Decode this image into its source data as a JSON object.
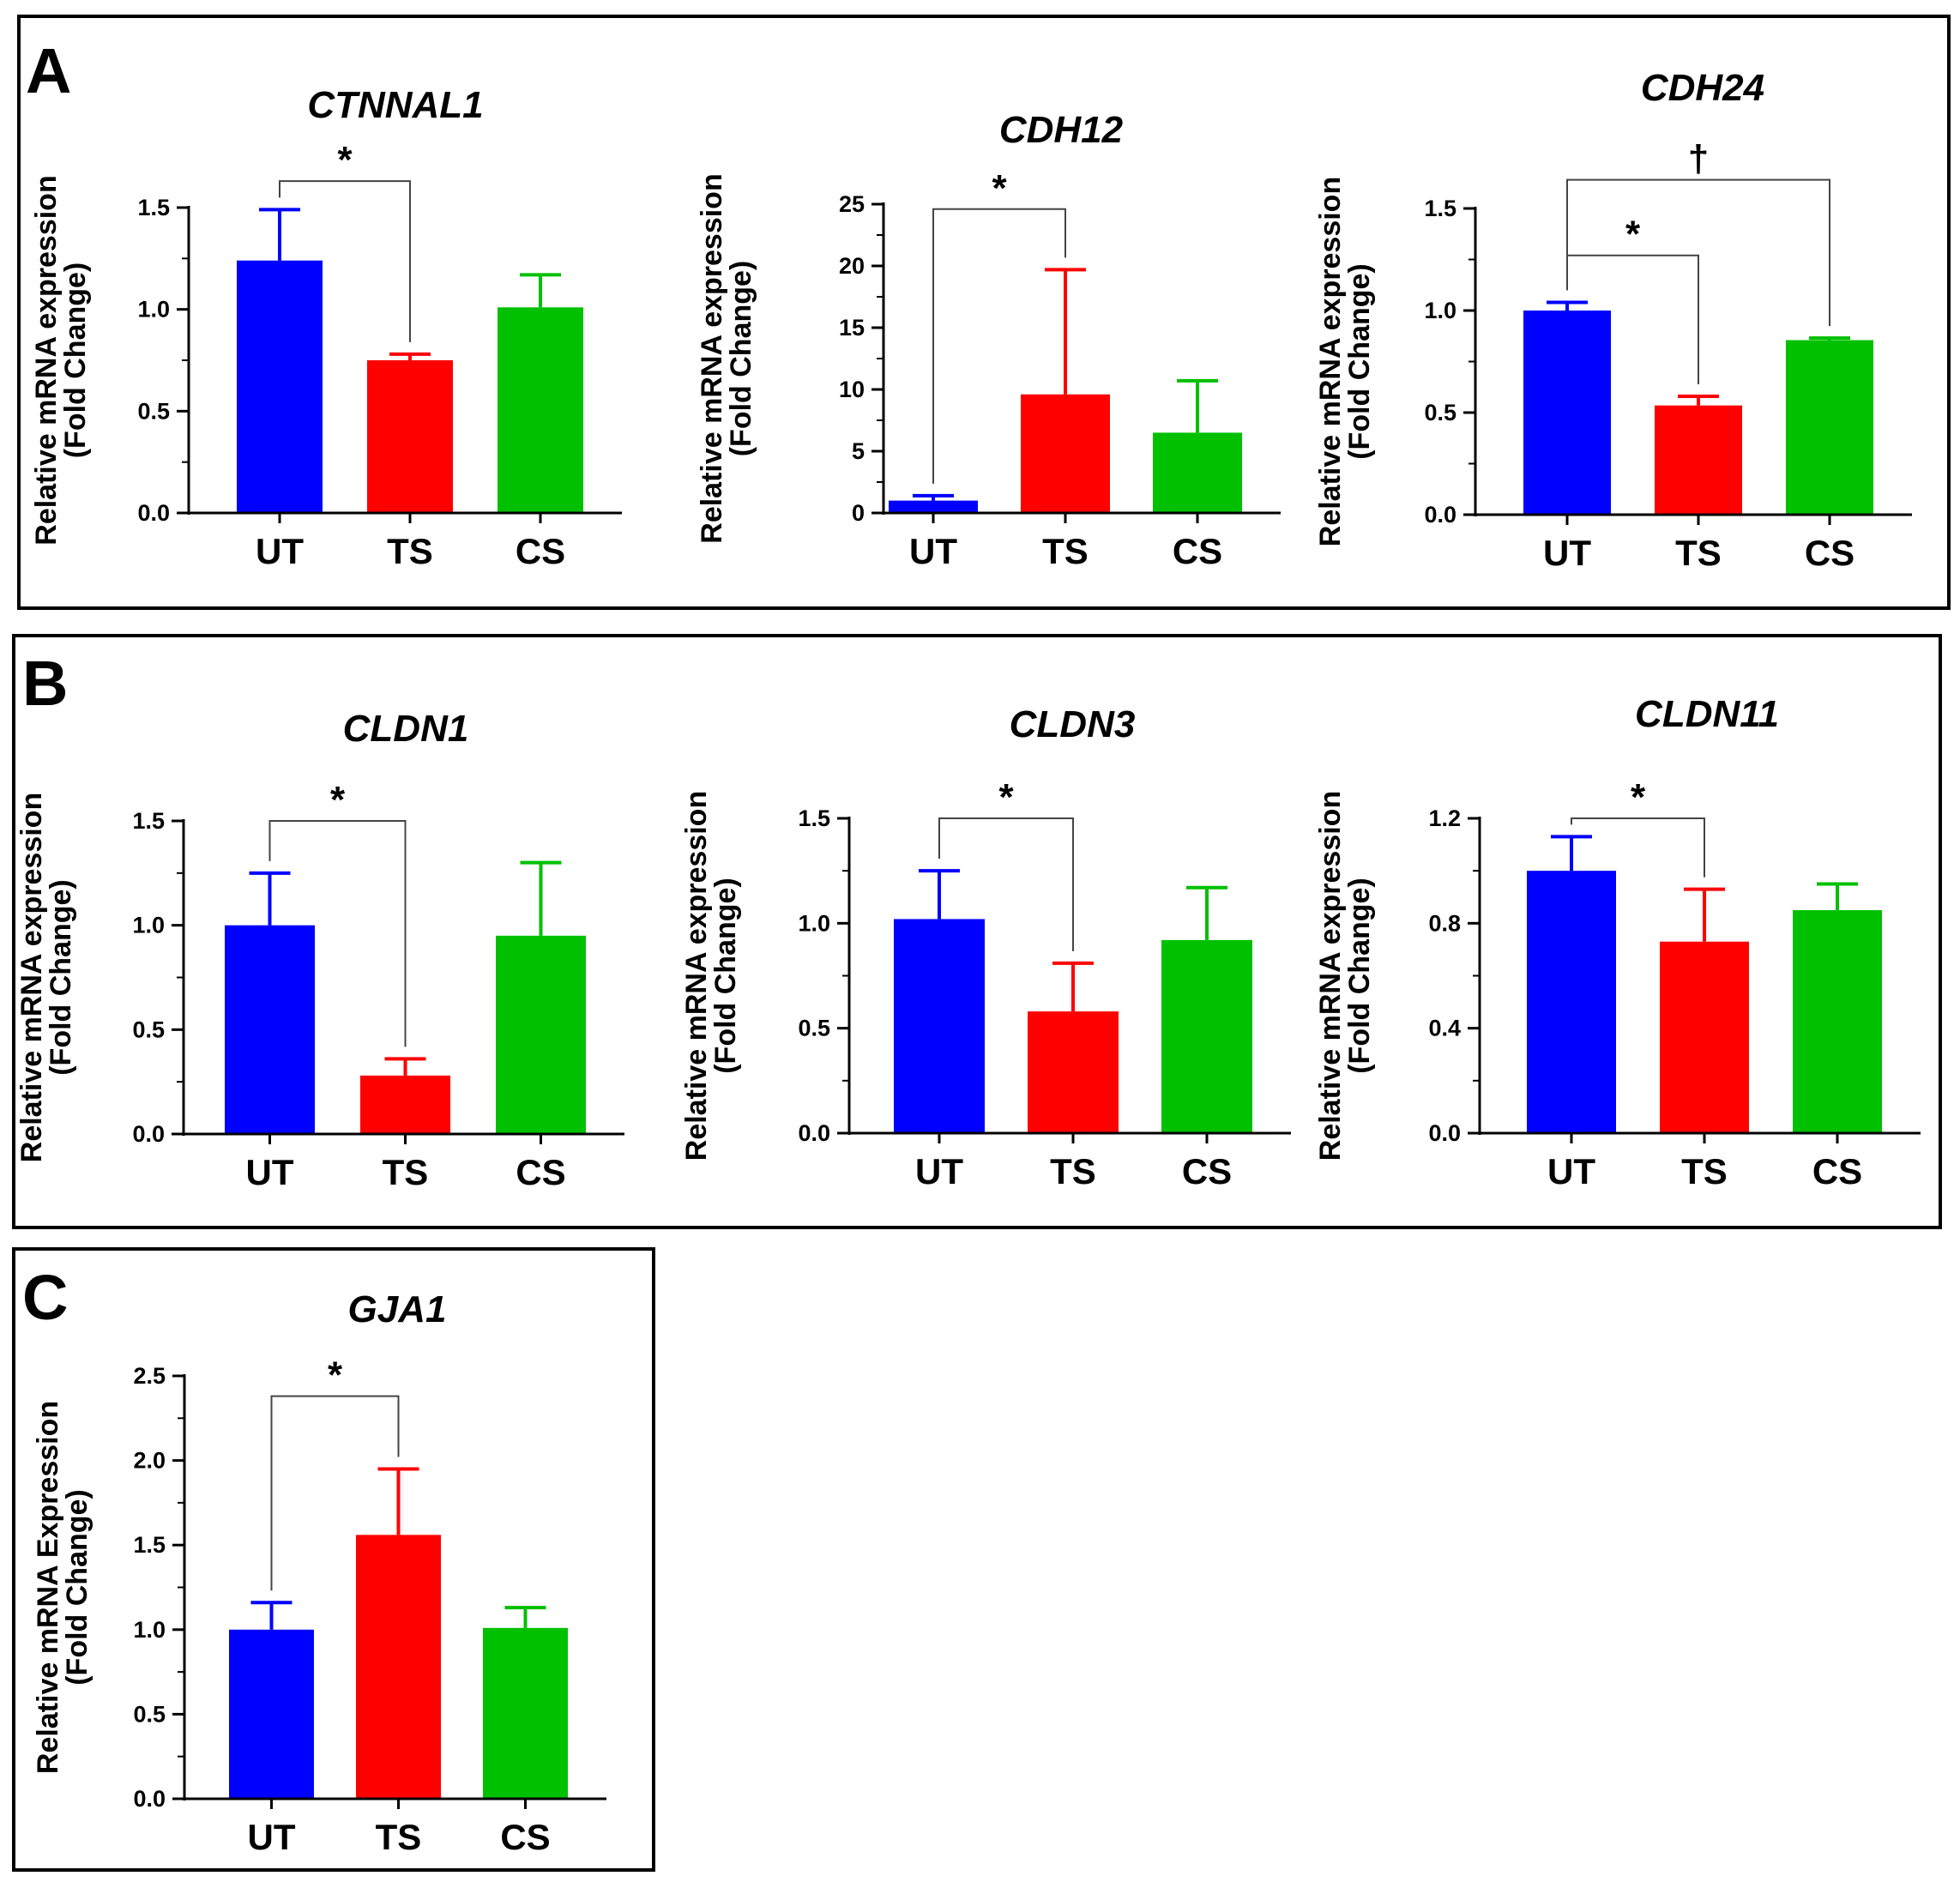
{
  "figure": {
    "panels": [
      {
        "label": "A",
        "charts": [
          {
            "title": "CTNNAL1"
          },
          {
            "title": "CDH12"
          },
          {
            "title": "CDH24"
          }
        ]
      },
      {
        "label": "B",
        "charts": [
          {
            "title": "CLDN1"
          },
          {
            "title": "CLDN3"
          },
          {
            "title": "CLDN11"
          }
        ]
      },
      {
        "label": "C",
        "charts": [
          {
            "title": "GJA1"
          }
        ]
      }
    ]
  },
  "colors": {
    "UT": "#0000ff",
    "TS": "#ff0000",
    "CS": "#00c000"
  },
  "chart_data": [
    {
      "type": "bar",
      "panel": "A",
      "title": "CTNNAL1",
      "categories": [
        "UT",
        "TS",
        "CS"
      ],
      "values": [
        1.24,
        0.75,
        1.01
      ],
      "errors": [
        0.25,
        0.03,
        0.16
      ],
      "ylabel": [
        "Relative mRNA expression",
        "(Fold Change)"
      ],
      "ylim": [
        0,
        1.5
      ],
      "ticks": [
        0,
        0.5,
        1.0,
        1.5
      ],
      "tick_labels": [
        "0.0",
        "0.5",
        "1.0",
        "1.5"
      ],
      "minor_ticks": [
        0.25,
        0.75,
        1.25
      ],
      "significance": [
        {
          "from": "UT",
          "to": "TS",
          "symbol": "*",
          "y": 1.63
        }
      ]
    },
    {
      "type": "bar",
      "panel": "A",
      "title": "CDH12",
      "categories": [
        "UT",
        "TS",
        "CS"
      ],
      "values": [
        1.0,
        9.6,
        6.5
      ],
      "errors": [
        0.4,
        10.1,
        4.2
      ],
      "ylabel": [
        "Relative mRNA expression",
        "(Fold Change)"
      ],
      "ylim": [
        0,
        25
      ],
      "ticks": [
        0,
        5,
        10,
        15,
        20,
        25
      ],
      "tick_labels": [
        "0",
        "5",
        "10",
        "15",
        "20",
        "25"
      ],
      "minor_ticks": [
        2.5,
        7.5,
        12.5,
        17.5,
        22.5
      ],
      "significance": [
        {
          "from": "UT",
          "to": "TS",
          "symbol": "*",
          "y": 24.6
        }
      ]
    },
    {
      "type": "bar",
      "panel": "A",
      "title": "CDH24",
      "categories": [
        "UT",
        "TS",
        "CS"
      ],
      "values": [
        1.0,
        0.535,
        0.855
      ],
      "errors": [
        0.04,
        0.045,
        0.01
      ],
      "ylabel": [
        "Relative mRNA expression",
        "(Fold Change)"
      ],
      "ylim": [
        0,
        1.5
      ],
      "ticks": [
        0,
        0.5,
        1.0,
        1.5
      ],
      "tick_labels": [
        "0.0",
        "0.5",
        "1.0",
        "1.5"
      ],
      "minor_ticks": [
        0.25,
        0.75,
        1.25
      ],
      "significance": [
        {
          "from": "UT",
          "to": "TS",
          "symbol": "*",
          "y": 1.27
        },
        {
          "from": "UT",
          "to": "CS",
          "symbol": "†",
          "y": 1.64
        }
      ]
    },
    {
      "type": "bar",
      "panel": "B",
      "title": "CLDN1",
      "categories": [
        "UT",
        "TS",
        "CS"
      ],
      "values": [
        1.0,
        0.28,
        0.95
      ],
      "errors": [
        0.25,
        0.08,
        0.35
      ],
      "ylabel": [
        "Relative mRNA expression",
        "(Fold Change)"
      ],
      "ylim": [
        0,
        1.5
      ],
      "ticks": [
        0,
        0.5,
        1.0,
        1.5
      ],
      "tick_labels": [
        "0.0",
        "0.5",
        "1.0",
        "1.5"
      ],
      "minor_ticks": [
        0.25,
        0.75,
        1.25
      ],
      "significance": [
        {
          "from": "UT",
          "to": "TS",
          "symbol": "*",
          "y": 1.5
        }
      ]
    },
    {
      "type": "bar",
      "panel": "B",
      "title": "CLDN3",
      "categories": [
        "UT",
        "TS",
        "CS"
      ],
      "values": [
        1.02,
        0.58,
        0.92
      ],
      "errors": [
        0.23,
        0.23,
        0.25
      ],
      "ylabel": [
        "Relative mRNA expression",
        "(Fold Change)"
      ],
      "ylim": [
        0,
        1.5
      ],
      "ticks": [
        0,
        0.5,
        1.0,
        1.5
      ],
      "tick_labels": [
        "0.0",
        "0.5",
        "1.0",
        "1.5"
      ],
      "minor_ticks": [
        0.25,
        0.75,
        1.25
      ],
      "significance": [
        {
          "from": "UT",
          "to": "TS",
          "symbol": "*",
          "y": 1.5
        }
      ]
    },
    {
      "type": "bar",
      "panel": "B",
      "title": "CLDN11",
      "categories": [
        "UT",
        "TS",
        "CS"
      ],
      "values": [
        1.0,
        0.73,
        0.85
      ],
      "errors": [
        0.13,
        0.2,
        0.1
      ],
      "ylabel": [
        "Relative mRNA expression",
        "(Fold Change)"
      ],
      "ylim": [
        0,
        1.2
      ],
      "ticks": [
        0,
        0.4,
        0.8,
        1.2
      ],
      "tick_labels": [
        "0.0",
        "0.4",
        "0.8",
        "1.2"
      ],
      "minor_ticks": [
        0.2,
        0.6,
        1.0
      ],
      "significance": [
        {
          "from": "UT",
          "to": "TS",
          "symbol": "*",
          "y": 1.2
        }
      ]
    },
    {
      "type": "bar",
      "panel": "C",
      "title": "GJA1",
      "categories": [
        "UT",
        "TS",
        "CS"
      ],
      "values": [
        1.0,
        1.56,
        1.01
      ],
      "errors": [
        0.16,
        0.39,
        0.12
      ],
      "ylabel": [
        "Relative mRNA Expression",
        "(Fold Change)"
      ],
      "ylim": [
        0,
        2.5
      ],
      "ticks": [
        0,
        0.5,
        1.0,
        1.5,
        2.0,
        2.5
      ],
      "tick_labels": [
        "0.0",
        "0.5",
        "1.0",
        "1.5",
        "2.0",
        "2.5"
      ],
      "minor_ticks": [
        0.25,
        0.75,
        1.25,
        1.75,
        2.25
      ],
      "significance": [
        {
          "from": "UT",
          "to": "TS",
          "symbol": "*",
          "y": 2.38
        }
      ]
    }
  ]
}
